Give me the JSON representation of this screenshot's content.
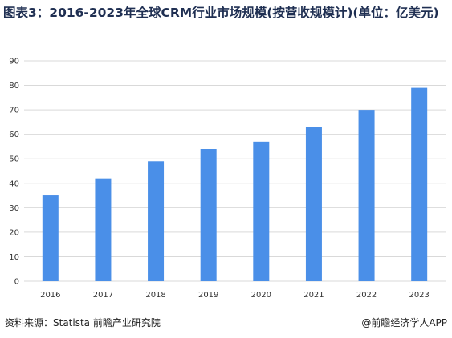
{
  "title": "图表3：2016-2023年全球CRM行业市场规模(按营收规模计)(单位：亿美元)",
  "source": "资料来源：Statista 前瞻产业研究院",
  "credit": "@前瞻经济学人APP",
  "colors": {
    "bar": "#4a8fe8",
    "grid": "#d9d9d9",
    "title": "#1f2f52"
  },
  "chart_data": {
    "type": "bar",
    "categories": [
      "2016",
      "2017",
      "2018",
      "2019",
      "2020",
      "2021",
      "2022",
      "2023"
    ],
    "values": [
      35,
      42,
      49,
      54,
      57,
      63,
      70,
      79
    ],
    "yticks": [
      "0",
      "10",
      "20",
      "30",
      "40",
      "50",
      "60",
      "70",
      "80",
      "90"
    ],
    "ylim": [
      0,
      90
    ],
    "grid": true,
    "legend": "none",
    "xlabel": "",
    "ylabel": ""
  }
}
